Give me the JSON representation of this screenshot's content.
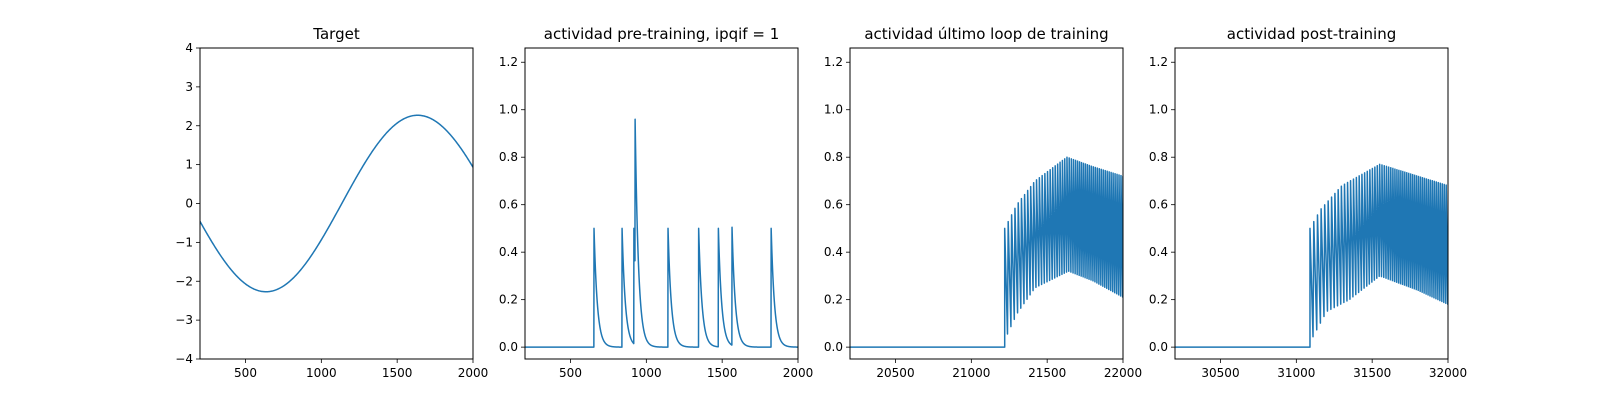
{
  "chart_data": [
    {
      "type": "line",
      "title": "Target",
      "xlim": [
        200,
        2000
      ],
      "ylim": [
        -4,
        4
      ],
      "xticks": [
        500,
        1000,
        1500,
        2000
      ],
      "yticks": [
        -4,
        -3,
        -2,
        -1,
        0,
        1,
        2,
        3,
        4
      ],
      "color": "#1f77b4",
      "series": [
        {
          "kind": "sine",
          "x_start": 200,
          "x_end": 2000,
          "amplitude": 2.27,
          "period": 2000,
          "phase_x": 1135,
          "points": [
            [
              200,
              -0.45
            ],
            [
              400,
              -1.65
            ],
            [
              634,
              -2.27
            ],
            [
              900,
              -1.7
            ],
            [
              1135,
              0
            ],
            [
              1400,
              1.7
            ],
            [
              1634,
              2.27
            ],
            [
              1800,
              1.95
            ],
            [
              2000,
              0.95
            ]
          ]
        }
      ]
    },
    {
      "type": "line",
      "title": "actividad pre-training, ipqif = 1",
      "xlim": [
        200,
        2000
      ],
      "ylim": [
        -0.05,
        1.26
      ],
      "xticks": [
        500,
        1000,
        1500,
        2000
      ],
      "yticks": [
        0.0,
        0.2,
        0.4,
        0.6,
        0.8,
        1.0,
        1.2
      ],
      "color": "#1f77b4",
      "series": [
        {
          "kind": "spikes",
          "x_start": 200,
          "x_end": 2000,
          "baseline": 0,
          "decay": 22,
          "spikes": [
            [
              655,
              0.5
            ],
            [
              840,
              0.5
            ],
            [
              918,
              0.5
            ],
            [
              926,
              0.96
            ],
            [
              1143,
              0.5
            ],
            [
              1345,
              0.5
            ],
            [
              1475,
              0.5
            ],
            [
              1565,
              0.505
            ],
            [
              1823,
              0.5
            ]
          ]
        }
      ]
    },
    {
      "type": "line",
      "title": "actividad último loop de training",
      "xlim": [
        20200,
        22000
      ],
      "ylim": [
        -0.05,
        1.26
      ],
      "xticks": [
        20500,
        21000,
        21500,
        22000
      ],
      "yticks": [
        0.0,
        0.2,
        0.4,
        0.6,
        0.8,
        1.0,
        1.2
      ],
      "color": "#1f77b4",
      "series": [
        {
          "kind": "oscillation",
          "x_start": 20200,
          "x_end": 22000,
          "onset": 21220,
          "first_peak": 0.5,
          "period_start": 23,
          "period_end": 13,
          "peak_envelope": [
            [
              21220,
              0.5
            ],
            [
              21300,
              0.6
            ],
            [
              21420,
              0.7
            ],
            [
              21630,
              0.8
            ],
            [
              21800,
              0.76
            ],
            [
              22000,
              0.72
            ]
          ],
          "trough_envelope": [
            [
              21220,
              0.03
            ],
            [
              21300,
              0.14
            ],
            [
              21420,
              0.25
            ],
            [
              21640,
              0.32
            ],
            [
              21800,
              0.28
            ],
            [
              22000,
              0.21
            ]
          ]
        }
      ]
    },
    {
      "type": "line",
      "title": "actividad post-training",
      "xlim": [
        30200,
        32000
      ],
      "ylim": [
        -0.05,
        1.26
      ],
      "xticks": [
        30500,
        31000,
        31500,
        32000
      ],
      "yticks": [
        0.0,
        0.2,
        0.4,
        0.6,
        0.8,
        1.0,
        1.2
      ],
      "color": "#1f77b4",
      "series": [
        {
          "kind": "oscillation",
          "x_start": 30200,
          "x_end": 32000,
          "onset": 31090,
          "first_peak": 0.5,
          "period_start": 25,
          "period_end": 13,
          "peak_envelope": [
            [
              31090,
              0.5
            ],
            [
              31160,
              0.58
            ],
            [
              31300,
              0.68
            ],
            [
              31550,
              0.77
            ],
            [
              31800,
              0.72
            ],
            [
              32000,
              0.68
            ]
          ],
          "trough_envelope": [
            [
              31090,
              0.02
            ],
            [
              31200,
              0.15
            ],
            [
              31350,
              0.2
            ],
            [
              31550,
              0.3
            ],
            [
              31800,
              0.24
            ],
            [
              32000,
              0.18
            ]
          ]
        }
      ]
    }
  ]
}
